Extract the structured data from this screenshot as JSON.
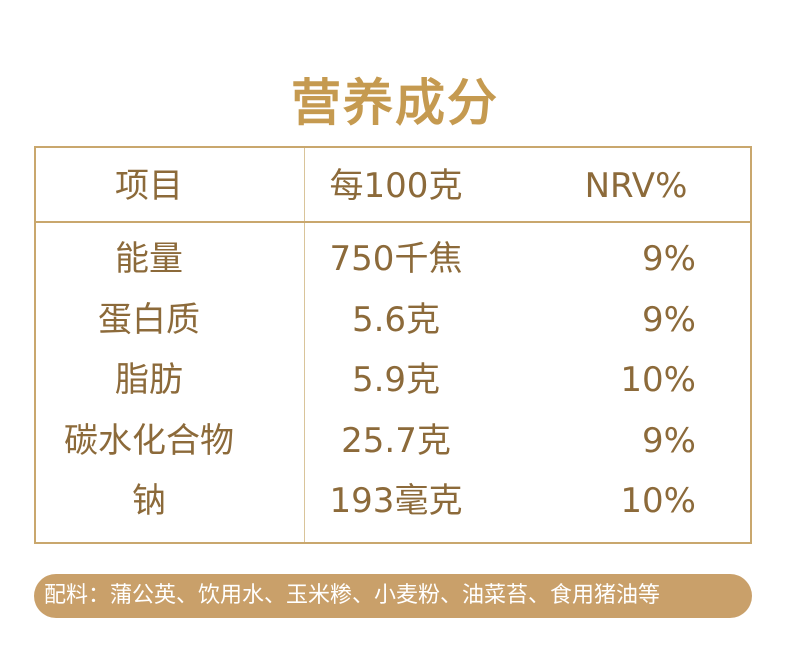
{
  "title": "营养成分",
  "table": {
    "headers": [
      "项目",
      "每100克",
      "NRV%"
    ],
    "rows": [
      {
        "item": "能量",
        "per100g": "750千焦",
        "nrv": "9%"
      },
      {
        "item": "蛋白质",
        "per100g": "5.6克",
        "nrv": "9%"
      },
      {
        "item": "脂肪",
        "per100g": "5.9克",
        "nrv": "10%"
      },
      {
        "item": "碳水化合物",
        "per100g": "25.7克",
        "nrv": "9%"
      },
      {
        "item": "钠",
        "per100g": "193毫克",
        "nrv": "10%"
      }
    ]
  },
  "ingredients": "配料：蒲公英、饮用水、玉米糁、小麦粉、油菜苔、食用猪油等",
  "colors": {
    "title": "#c59a50",
    "border": "#c9a76d",
    "text": "#8c6a3a",
    "banner": "#c9a06a"
  }
}
